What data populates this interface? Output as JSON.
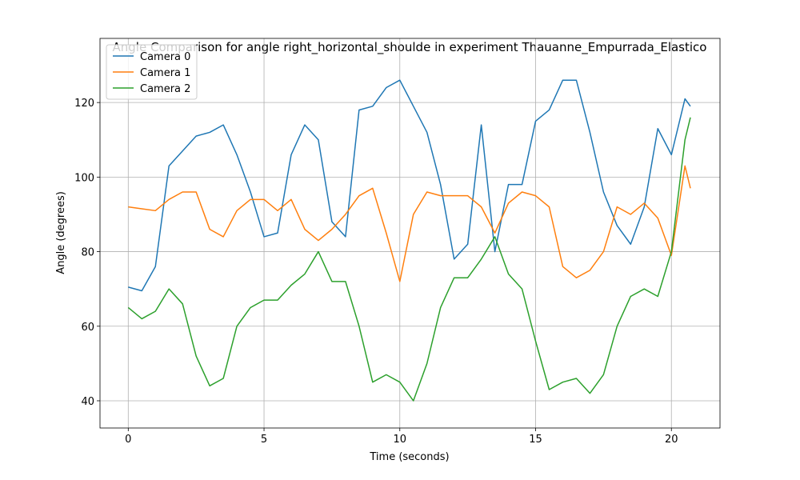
{
  "chart_data": {
    "type": "line",
    "title": "Angle Comparison for angle right_horizontal_shoulde in experiment Thauanne_Empurrada_Elastico",
    "x_label": "Time (seconds)",
    "y_label": "Angle (degrees)",
    "x": [
      0,
      0.5,
      1,
      1.5,
      2,
      2.5,
      3,
      3.5,
      4,
      4.5,
      5,
      5.5,
      6,
      6.5,
      7,
      7.5,
      8,
      8.5,
      9,
      9.5,
      10,
      10.5,
      11,
      11.5,
      12,
      12.5,
      13,
      13.5,
      14,
      14.5,
      15,
      15.5,
      16,
      16.5,
      17,
      17.5,
      18,
      18.5,
      19,
      19.5,
      20,
      20.5,
      20.7
    ],
    "series": [
      {
        "name": "Camera 0",
        "color": "#1f77b4",
        "values": [
          70.5,
          69.5,
          76,
          103,
          107,
          111,
          112,
          114,
          106,
          96,
          84,
          85,
          106,
          114,
          110,
          88,
          84,
          118,
          119,
          124,
          126,
          119,
          112,
          98,
          78,
          82,
          114,
          80,
          98,
          98,
          115,
          118,
          126,
          126,
          112,
          96,
          87,
          82,
          92,
          113,
          106,
          121,
          119
        ]
      },
      {
        "name": "Camera 1",
        "color": "#ff7f0e",
        "values": [
          92,
          91.5,
          91,
          94,
          96,
          96,
          86,
          84,
          91,
          94,
          94,
          91,
          94,
          86,
          83,
          86,
          90,
          95,
          97,
          85,
          72,
          90,
          96,
          95,
          95,
          95,
          92,
          85,
          93,
          96,
          95,
          92,
          76,
          73,
          75,
          80,
          92,
          90,
          93,
          89,
          79,
          103,
          97
        ]
      },
      {
        "name": "Camera 2",
        "color": "#2ca02c",
        "values": [
          65,
          62,
          64,
          70,
          66,
          52,
          44,
          46,
          60,
          65,
          67,
          67,
          71,
          74,
          80,
          72,
          72,
          60,
          45,
          47,
          45,
          40,
          50,
          65,
          73,
          73,
          78,
          84,
          74,
          70,
          56,
          43,
          45,
          46,
          42,
          47,
          60,
          68,
          70,
          68,
          80,
          110,
          116
        ]
      }
    ],
    "xlim": [
      -1.04,
      21.79
    ],
    "ylim": [
      32.7,
      137.2
    ],
    "xticks": [
      0,
      5,
      10,
      15,
      20
    ],
    "yticks": [
      40,
      60,
      80,
      100,
      120
    ],
    "grid": true,
    "legend": "upper-left"
  }
}
